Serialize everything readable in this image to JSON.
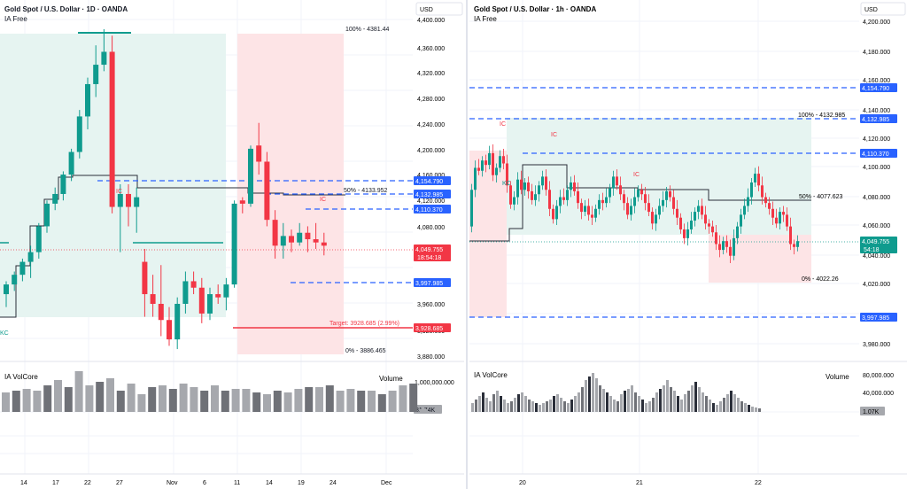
{
  "colors": {
    "up": "#0f9b8e",
    "down": "#f23645",
    "grid": "#f0f3fa",
    "axis_text": "#131722",
    "blue_line": "#2962ff",
    "green_zone": "#e6f4f1",
    "red_zone": "#fde4e6",
    "volume_gray": "#a6a8ad",
    "volume_dark": "#6f7177",
    "volume_black": "#2a2e39"
  },
  "left_chart": {
    "title": "Gold Spot / U.S. Dollar · 1D · OANDA",
    "subtitle": "IA Free",
    "currency": "USD",
    "price_ticks": [
      "4,400.000",
      "4,360.000",
      "4,320.000",
      "4,280.000",
      "4,240.000",
      "4,200.000",
      "4,160.000",
      "4,120.000",
      "4,080.000",
      "3,960.000",
      "3,920.000",
      "3,880.000"
    ],
    "labels": {
      "level_100": "100% - 4381.44",
      "level_50": "50% - 4133.952",
      "level_0": "0% - 3886.465",
      "target": "Target: 3928.685 (2.99%)",
      "ic1": "IC",
      "ic2": "IC",
      "kc": "KC"
    },
    "price_tags": {
      "tag1": "4,154.790",
      "tag2": "4,132.985",
      "tag3": "4,110.370",
      "current": "4,049.755",
      "countdown": "18:54:18",
      "tag4": "3,997.985",
      "target": "3,928.685"
    },
    "volume": {
      "indicator": "IA VolCore",
      "label": "Volume",
      "tick": "1,000,000.000",
      "current": "81.74K"
    },
    "time_ticks": [
      "14",
      "17",
      "22",
      "27",
      "Nov",
      "6",
      "11",
      "14",
      "19",
      "24",
      "Dec"
    ]
  },
  "right_chart": {
    "title": "Gold Spot / U.S. Dollar · 1h · OANDA",
    "subtitle": "IA Free",
    "currency": "USD",
    "price_ticks": [
      "4,200.000",
      "4,180.000",
      "4,160.000",
      "4,140.000",
      "4,120.000",
      "4,100.000",
      "4,080.000",
      "4,060.000",
      "4,040.000",
      "4,020.000",
      "3,980.000"
    ],
    "labels": {
      "level_100": "100% - 4132.985",
      "level_50": "50% - 4077.623",
      "level_0": "0% - 4022.26",
      "ic1": "IC",
      "ic2": "IC",
      "ic3": "IC",
      "kc": "KC"
    },
    "price_tags": {
      "tag1": "4,154.790",
      "tag2": "4,132.985",
      "tag3": "4,110.370",
      "current": "4,049.755",
      "countdown": "54:18",
      "tag4": "3,997.985"
    },
    "volume": {
      "indicator": "IA VolCore",
      "label": "Volume",
      "tick1": "80,000.000",
      "tick2": "40,000.000",
      "current": "1.07K"
    },
    "time_ticks": [
      "20",
      "21",
      "22"
    ]
  },
  "chart_data": [
    {
      "type": "candlestick",
      "title": "Gold Spot / U.S. Dollar · 1D · OANDA",
      "ylim": [
        3870,
        4405
      ],
      "ohlc": [
        [
          3975,
          3995,
          3955,
          3990
        ],
        [
          3990,
          4010,
          3980,
          4005
        ],
        [
          4005,
          4030,
          3995,
          4025
        ],
        [
          4025,
          4050,
          4000,
          4040
        ],
        [
          4040,
          4085,
          4030,
          4080
        ],
        [
          4080,
          4120,
          4070,
          4115
        ],
        [
          4115,
          4140,
          4105,
          4130
        ],
        [
          4130,
          4165,
          4120,
          4160
        ],
        [
          4160,
          4200,
          4150,
          4195
        ],
        [
          4195,
          4260,
          4185,
          4250
        ],
        [
          4250,
          4310,
          4230,
          4300
        ],
        [
          4300,
          4360,
          4280,
          4330
        ],
        [
          4330,
          4385,
          4320,
          4350
        ],
        [
          4350,
          4375,
          4100,
          4110
        ],
        [
          4110,
          4145,
          4040,
          4130
        ],
        [
          4130,
          4145,
          4080,
          4110
        ],
        [
          4110,
          4140,
          4070,
          4125
        ],
        [
          4025,
          4045,
          3940,
          3975
        ],
        [
          3975,
          4005,
          3940,
          3960
        ],
        [
          3960,
          4020,
          3910,
          3935
        ],
        [
          3935,
          3955,
          3895,
          3905
        ],
        [
          3905,
          3970,
          3890,
          3960
        ],
        [
          3960,
          4010,
          3945,
          3995
        ],
        [
          3995,
          4010,
          3975,
          3985
        ],
        [
          3985,
          4000,
          3930,
          3945
        ],
        [
          3945,
          3985,
          3935,
          3975
        ],
        [
          3975,
          3990,
          3960,
          3970
        ],
        [
          3970,
          4000,
          3950,
          3990
        ],
        [
          3990,
          4120,
          3985,
          4115
        ],
        [
          4120,
          4125,
          4100,
          4115
        ],
        [
          4115,
          4205,
          4110,
          4200
        ],
        [
          4205,
          4240,
          4160,
          4180
        ],
        [
          4180,
          4195,
          4080,
          4090
        ],
        [
          4090,
          4105,
          4030,
          4050
        ],
        [
          4050,
          4085,
          4030,
          4065
        ],
        [
          4065,
          4075,
          4040,
          4055
        ],
        [
          4055,
          4085,
          4050,
          4070
        ],
        [
          4070,
          4080,
          4040,
          4060
        ],
        [
          4060,
          4085,
          4045,
          4055
        ],
        [
          4055,
          4070,
          4035,
          4050
        ]
      ],
      "volume_label": "Volume"
    },
    {
      "type": "candlestick",
      "title": "Gold Spot / U.S. Dollar · 1h · OANDA",
      "ylim": [
        3970,
        4205
      ],
      "volume_label": "Volume"
    }
  ]
}
